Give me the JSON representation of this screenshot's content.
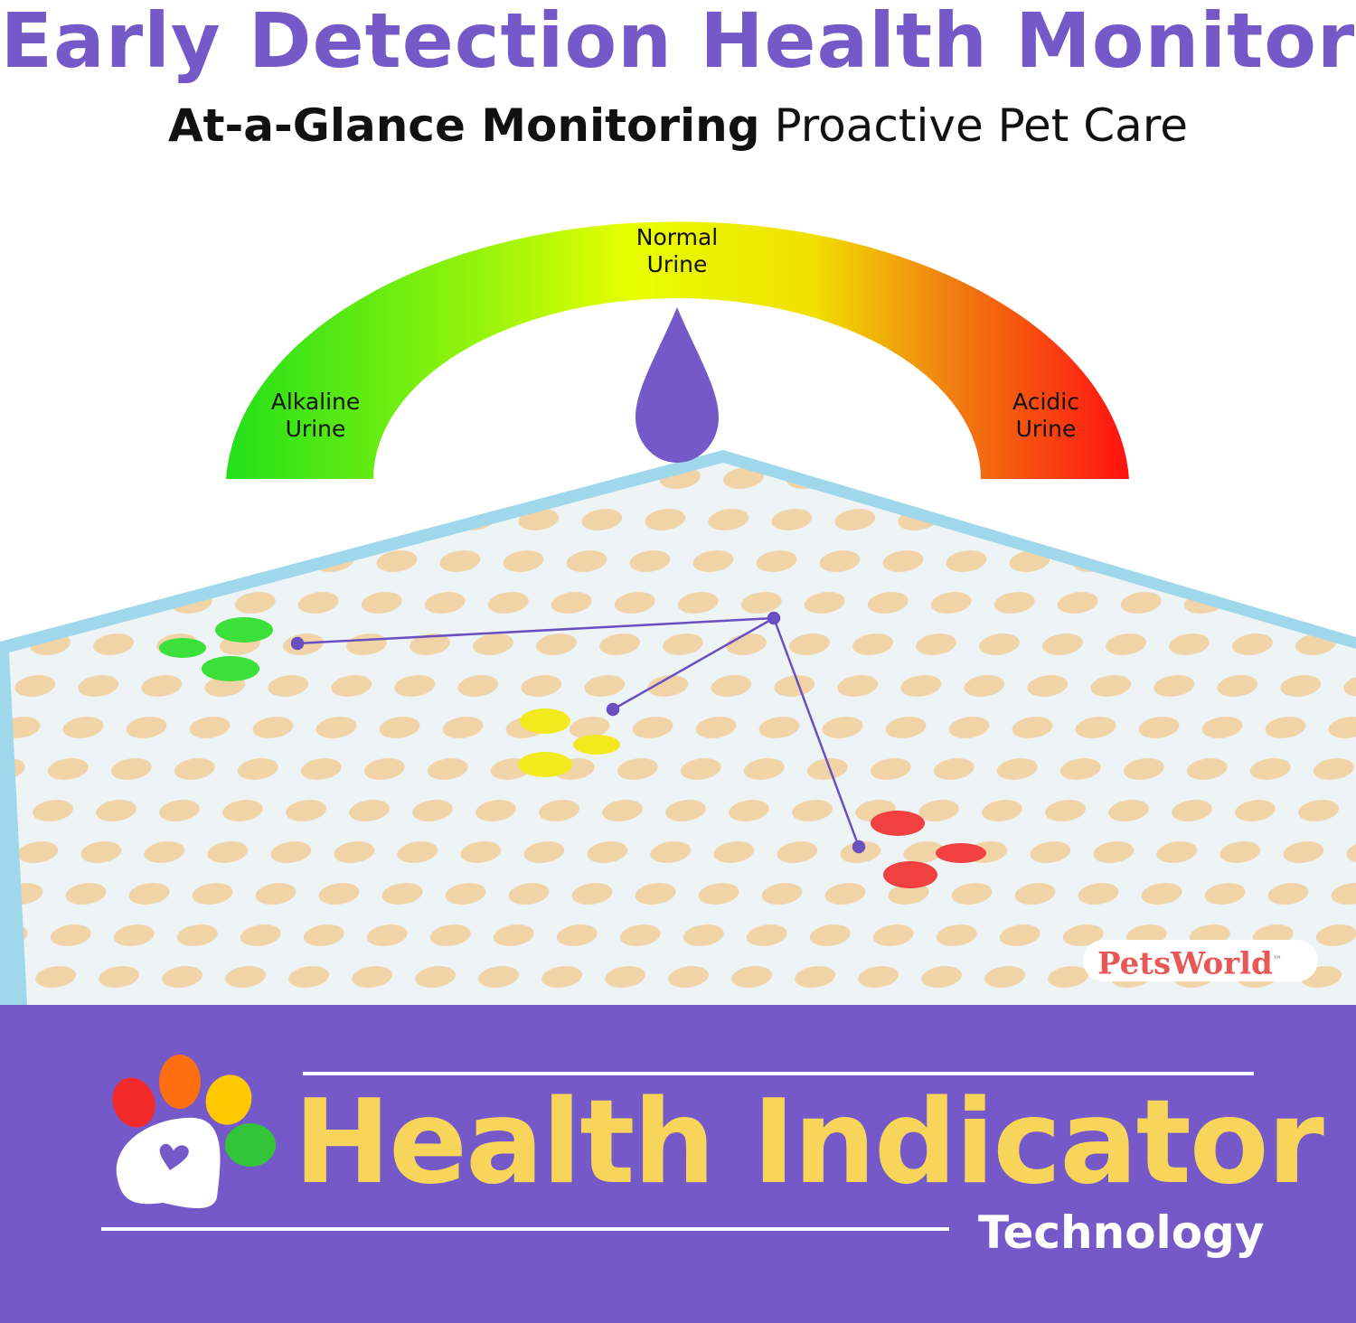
{
  "header": {
    "title": "Early Detection Health Monitor",
    "subtitle_bold": "At-a-Glance Monitoring",
    "subtitle_rest": "Proactive Pet Care"
  },
  "gauge": {
    "labels": {
      "normal": [
        "Normal",
        "Urine"
      ],
      "alkaline": [
        "Alkaline",
        "Urine"
      ],
      "acidic": [
        "Acidic",
        "Urine"
      ]
    },
    "colors": [
      "#22e01a",
      "#e8ff00",
      "#ff1010"
    ],
    "drop_color": "#7659c8"
  },
  "pad": {
    "stain_colors": {
      "alkaline": "#3be03a",
      "normal": "#f2ea1c",
      "acidic": "#f04040"
    }
  },
  "brand": {
    "name": "PetsWorld",
    "tm": "™"
  },
  "banner": {
    "headline": "Health Indicator",
    "tagline": "Technology",
    "background": "#7659c8",
    "headline_color": "#f7d55a"
  }
}
